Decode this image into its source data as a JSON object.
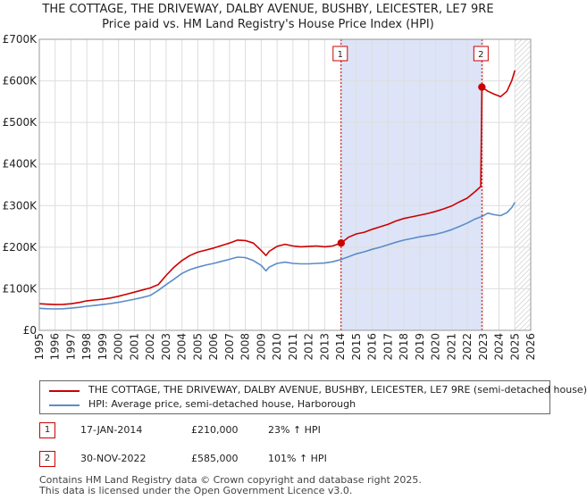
{
  "header": {
    "title": "THE COTTAGE, THE DRIVEWAY, DALBY AVENUE, BUSHBY, LEICESTER, LE7 9RE",
    "subtitle": "Price paid vs. HM Land Registry's House Price Index (HPI)"
  },
  "chart_data": {
    "type": "line",
    "title": "THE COTTAGE, THE DRIVEWAY, DALBY AVENUE, BUSHBY, LEICESTER, LE7 9RE",
    "subtitle": "Price paid vs. HM Land Registry's House Price Index (HPI)",
    "xlabel": "",
    "ylabel": "",
    "xlim": [
      1995,
      2026
    ],
    "ylim": [
      0,
      700000
    ],
    "x_ticks": [
      "1995",
      "1996",
      "1997",
      "1998",
      "1999",
      "2000",
      "2001",
      "2002",
      "2003",
      "2004",
      "2005",
      "2006",
      "2007",
      "2008",
      "2009",
      "2010",
      "2011",
      "2012",
      "2013",
      "2014",
      "2015",
      "2016",
      "2017",
      "2018",
      "2019",
      "2020",
      "2021",
      "2022",
      "2023",
      "2024",
      "2025",
      "2026"
    ],
    "y_ticks": [
      {
        "value": 0,
        "label": "£0"
      },
      {
        "value": 100000,
        "label": "£100K"
      },
      {
        "value": 200000,
        "label": "£200K"
      },
      {
        "value": 300000,
        "label": "£300K"
      },
      {
        "value": 400000,
        "label": "£400K"
      },
      {
        "value": 500000,
        "label": "£500K"
      },
      {
        "value": 600000,
        "label": "£600K"
      },
      {
        "value": 700000,
        "label": "£700K"
      }
    ],
    "grid": true,
    "colors": {
      "property": "#cc0000",
      "hpi": "#5b8cc8",
      "shade": "#dde4f7",
      "marker_line": "#cc0000"
    },
    "shaded_period": [
      2014.04,
      2022.92
    ],
    "forecast_from": 2025.0,
    "series": [
      {
        "name": "THE COTTAGE, THE DRIVEWAY, DALBY AVENUE, BUSHBY, LEICESTER, LE7 9RE (semi-detached house)",
        "points": [
          [
            1995.0,
            64000
          ],
          [
            1995.5,
            63000
          ],
          [
            1996.0,
            62000
          ],
          [
            1996.5,
            62500
          ],
          [
            1997.0,
            64000
          ],
          [
            1997.5,
            67000
          ],
          [
            1998.0,
            71000
          ],
          [
            1998.5,
            73000
          ],
          [
            1999.0,
            75000
          ],
          [
            1999.5,
            78000
          ],
          [
            2000.0,
            82000
          ],
          [
            2000.5,
            87000
          ],
          [
            2001.0,
            92000
          ],
          [
            2001.5,
            97000
          ],
          [
            2002.0,
            102000
          ],
          [
            2002.5,
            110000
          ],
          [
            2003.0,
            132000
          ],
          [
            2003.5,
            152000
          ],
          [
            2004.0,
            168000
          ],
          [
            2004.5,
            180000
          ],
          [
            2005.0,
            188000
          ],
          [
            2005.5,
            193000
          ],
          [
            2006.0,
            198000
          ],
          [
            2006.5,
            204000
          ],
          [
            2007.0,
            210000
          ],
          [
            2007.5,
            217000
          ],
          [
            2008.0,
            216000
          ],
          [
            2008.5,
            210000
          ],
          [
            2009.0,
            192000
          ],
          [
            2009.3,
            180000
          ],
          [
            2009.5,
            190000
          ],
          [
            2010.0,
            202000
          ],
          [
            2010.5,
            207000
          ],
          [
            2011.0,
            203000
          ],
          [
            2011.5,
            201000
          ],
          [
            2012.0,
            202000
          ],
          [
            2012.5,
            203000
          ],
          [
            2013.0,
            201000
          ],
          [
            2013.5,
            203000
          ],
          [
            2014.04,
            210000
          ],
          [
            2014.5,
            224000
          ],
          [
            2015.0,
            232000
          ],
          [
            2015.5,
            236000
          ],
          [
            2016.0,
            243000
          ],
          [
            2016.5,
            249000
          ],
          [
            2017.0,
            255000
          ],
          [
            2017.5,
            263000
          ],
          [
            2018.0,
            269000
          ],
          [
            2018.5,
            273000
          ],
          [
            2019.0,
            277000
          ],
          [
            2019.5,
            281000
          ],
          [
            2020.0,
            286000
          ],
          [
            2020.5,
            292000
          ],
          [
            2021.0,
            299000
          ],
          [
            2021.5,
            309000
          ],
          [
            2022.0,
            318000
          ],
          [
            2022.5,
            334000
          ],
          [
            2022.85,
            346000
          ],
          [
            2022.92,
            585000
          ],
          [
            2023.3,
            575000
          ],
          [
            2023.7,
            568000
          ],
          [
            2024.1,
            562000
          ],
          [
            2024.5,
            575000
          ],
          [
            2024.8,
            600000
          ],
          [
            2025.0,
            625000
          ]
        ]
      },
      {
        "name": "HPI: Average price, semi-detached house, Harborough",
        "points": [
          [
            1995.0,
            53000
          ],
          [
            1995.5,
            52000
          ],
          [
            1996.0,
            51500
          ],
          [
            1996.5,
            52000
          ],
          [
            1997.0,
            53500
          ],
          [
            1997.5,
            55500
          ],
          [
            1998.0,
            58000
          ],
          [
            1998.5,
            60000
          ],
          [
            1999.0,
            62000
          ],
          [
            1999.5,
            64500
          ],
          [
            2000.0,
            67500
          ],
          [
            2000.5,
            71000
          ],
          [
            2001.0,
            75000
          ],
          [
            2001.5,
            79000
          ],
          [
            2002.0,
            84000
          ],
          [
            2002.5,
            96000
          ],
          [
            2003.0,
            110000
          ],
          [
            2003.5,
            123000
          ],
          [
            2004.0,
            137000
          ],
          [
            2004.5,
            146000
          ],
          [
            2005.0,
            152000
          ],
          [
            2005.5,
            157000
          ],
          [
            2006.0,
            161000
          ],
          [
            2006.5,
            166000
          ],
          [
            2007.0,
            171000
          ],
          [
            2007.5,
            176000
          ],
          [
            2008.0,
            175000
          ],
          [
            2008.5,
            168000
          ],
          [
            2009.0,
            156000
          ],
          [
            2009.3,
            143000
          ],
          [
            2009.5,
            152000
          ],
          [
            2010.0,
            161000
          ],
          [
            2010.5,
            164000
          ],
          [
            2011.0,
            161000
          ],
          [
            2011.5,
            160000
          ],
          [
            2012.0,
            160000
          ],
          [
            2012.5,
            161000
          ],
          [
            2013.0,
            162000
          ],
          [
            2013.5,
            165000
          ],
          [
            2014.0,
            170000
          ],
          [
            2014.5,
            177000
          ],
          [
            2015.0,
            184000
          ],
          [
            2015.5,
            189000
          ],
          [
            2016.0,
            195000
          ],
          [
            2016.5,
            200000
          ],
          [
            2017.0,
            206000
          ],
          [
            2017.5,
            212000
          ],
          [
            2018.0,
            217000
          ],
          [
            2018.5,
            221000
          ],
          [
            2019.0,
            225000
          ],
          [
            2019.5,
            228000
          ],
          [
            2020.0,
            231000
          ],
          [
            2020.5,
            236000
          ],
          [
            2021.0,
            242000
          ],
          [
            2021.5,
            250000
          ],
          [
            2022.0,
            258000
          ],
          [
            2022.5,
            268000
          ],
          [
            2022.92,
            274000
          ],
          [
            2023.3,
            282000
          ],
          [
            2023.7,
            278000
          ],
          [
            2024.1,
            276000
          ],
          [
            2024.5,
            283000
          ],
          [
            2024.8,
            295000
          ],
          [
            2025.0,
            308000
          ]
        ]
      }
    ],
    "annotations": [
      {
        "label": "1",
        "x": 2014.04,
        "y": 210000
      },
      {
        "label": "2",
        "x": 2022.92,
        "y": 585000
      }
    ]
  },
  "legend": {
    "property_label": "THE COTTAGE, THE DRIVEWAY, DALBY AVENUE, BUSHBY, LEICESTER, LE7 9RE (semi-detached house)",
    "hpi_label": "HPI: Average price, semi-detached house, Harborough"
  },
  "sales": [
    {
      "num": "1",
      "date": "17-JAN-2014",
      "price": "£210,000",
      "hpi": "23% ↑ HPI"
    },
    {
      "num": "2",
      "date": "30-NOV-2022",
      "price": "£585,000",
      "hpi": "101% ↑ HPI"
    }
  ],
  "footer": {
    "line1": "Contains HM Land Registry data © Crown copyright and database right 2025.",
    "line2": "This data is licensed under the Open Government Licence v3.0."
  }
}
